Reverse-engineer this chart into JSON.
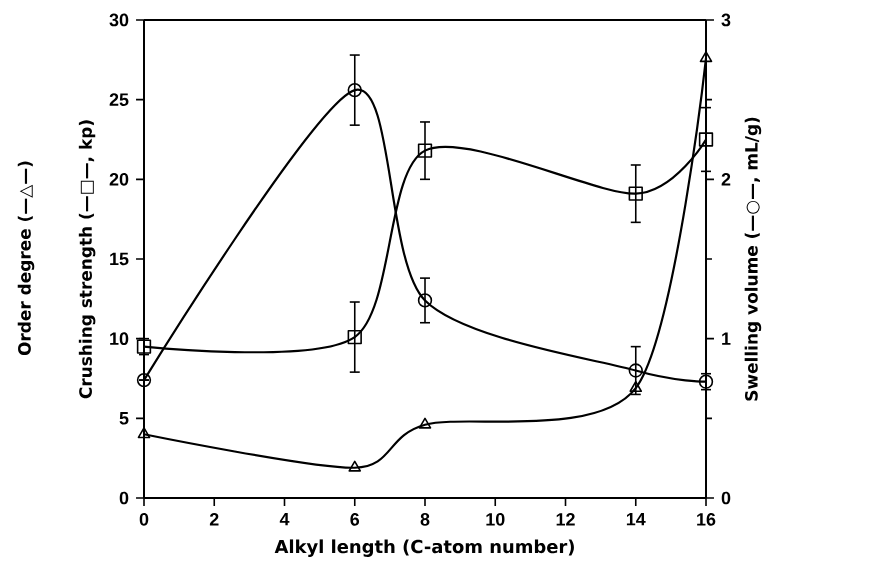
{
  "chart_data": {
    "type": "line",
    "xlabel": "Alkyl length (C-atom number)",
    "ylabel": "Crushing strength (—□—, kp)",
    "y2label": "Swelling volume (—○—, mL/g)",
    "annotations": [
      "Order degree (—△—)"
    ],
    "x": [
      0,
      6,
      8,
      14,
      16
    ],
    "xlim": [
      0,
      16
    ],
    "xticks": [
      0,
      2,
      4,
      6,
      8,
      10,
      12,
      14,
      16
    ],
    "ylim": [
      0,
      30
    ],
    "yticks": [
      0,
      5,
      10,
      15,
      20,
      25,
      30
    ],
    "y2lim": [
      0,
      3
    ],
    "y2ticks": [
      0,
      1,
      2,
      3
    ],
    "series": [
      {
        "color": "#000000",
        "marker": "triangle",
        "values": [
          4.0,
          1.9,
          4.6,
          6.9,
          27.6
        ]
      },
      {
        "color": "#000000",
        "marker": "square",
        "values": [
          9.5,
          10.1,
          21.8,
          19.1,
          22.5
        ],
        "errors": [
          0.5,
          2.2,
          1.8,
          1.8,
          2.0
        ]
      },
      {
        "color": "#000000",
        "marker": "circle",
        "axis": "y2",
        "values": [
          0.74,
          2.56,
          1.24,
          0.8,
          0.73
        ],
        "errors": [
          null,
          0.22,
          0.14,
          0.15,
          0.05
        ]
      }
    ]
  }
}
